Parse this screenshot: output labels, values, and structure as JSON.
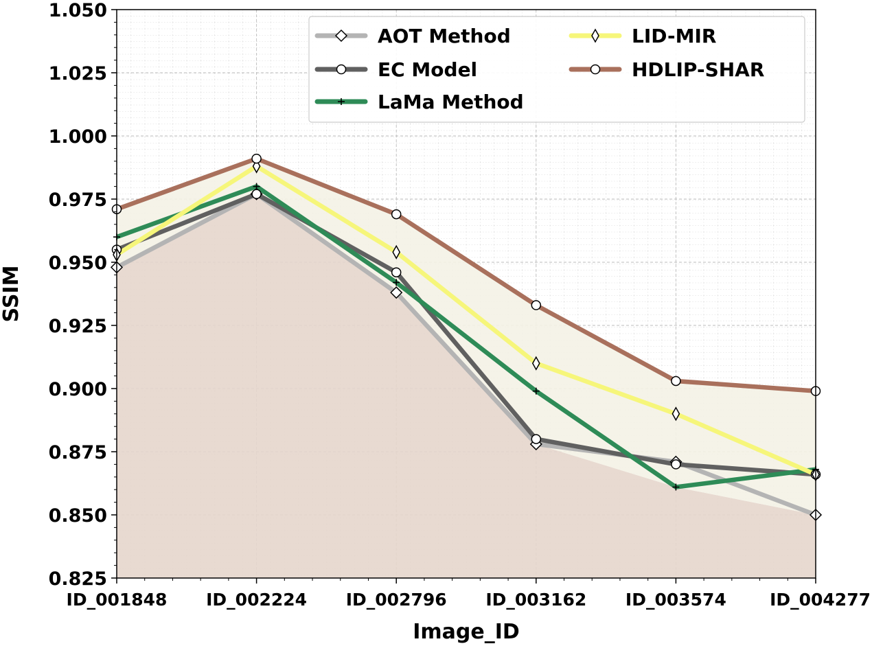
{
  "chart_data": {
    "type": "line",
    "title": "",
    "xlabel": "Image_ID",
    "ylabel": "SSIM",
    "categories": [
      "ID_001848",
      "ID_002224",
      "ID_002796",
      "ID_003162",
      "ID_003574",
      "ID_004277"
    ],
    "ylim": [
      0.825,
      1.05
    ],
    "yticks": [
      "0.825",
      "0.850",
      "0.875",
      "0.900",
      "0.925",
      "0.950",
      "0.975",
      "1.000",
      "1.025",
      "1.050"
    ],
    "grid": true,
    "legend_position": "top-right",
    "series": [
      {
        "name": "AOT Method",
        "values": [
          0.948,
          0.977,
          0.938,
          0.878,
          0.871,
          0.85
        ],
        "color": "#b4b4b4",
        "marker": "diamond"
      },
      {
        "name": "EC Model",
        "values": [
          0.955,
          0.977,
          0.946,
          0.88,
          0.87,
          0.866
        ],
        "color": "#606060",
        "marker": "circle"
      },
      {
        "name": "LaMa Method",
        "values": [
          0.96,
          0.98,
          0.942,
          0.899,
          0.861,
          0.868
        ],
        "color": "#2e8b57",
        "marker": "plus"
      },
      {
        "name": "LID-MIR",
        "values": [
          0.953,
          0.988,
          0.954,
          0.91,
          0.89,
          0.866
        ],
        "color": "#f6f67a",
        "marker": "thin_diamond"
      },
      {
        "name": "HDLIP-SHAR",
        "values": [
          0.971,
          0.991,
          0.969,
          0.933,
          0.903,
          0.899
        ],
        "color": "#a9705c",
        "marker": "circle"
      }
    ],
    "fill_colors": {
      "under": "#e6d6cc",
      "band": "#f4f2e6"
    }
  }
}
